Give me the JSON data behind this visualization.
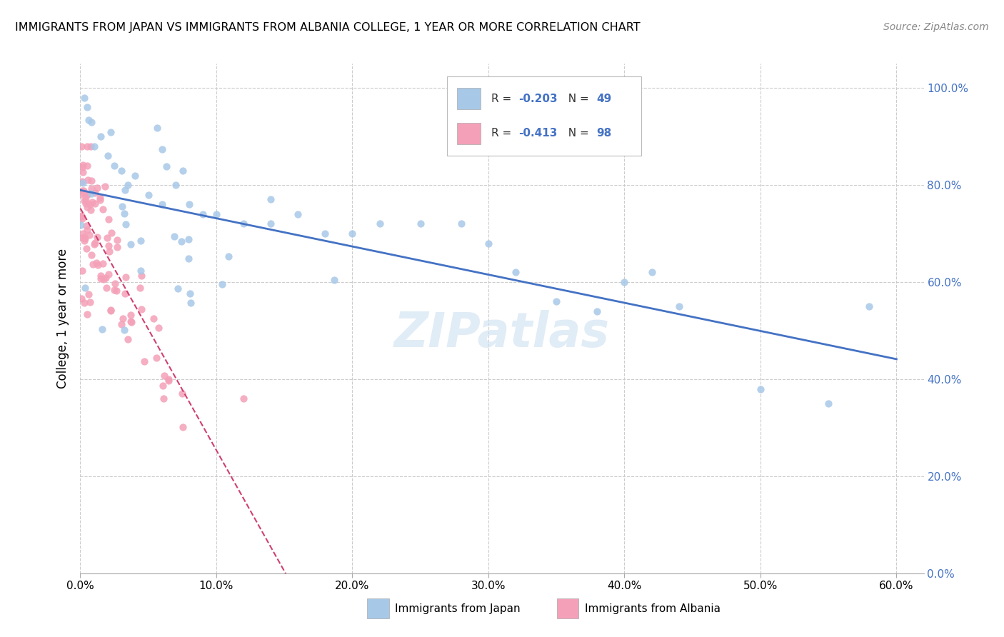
{
  "title": "IMMIGRANTS FROM JAPAN VS IMMIGRANTS FROM ALBANIA COLLEGE, 1 YEAR OR MORE CORRELATION CHART",
  "source": "Source: ZipAtlas.com",
  "ylabel_label": "College, 1 year or more",
  "legend_japan": "Immigrants from Japan",
  "legend_albania": "Immigrants from Albania",
  "R_japan": -0.203,
  "N_japan": 49,
  "R_albania": -0.413,
  "N_albania": 98,
  "color_japan": "#a8c8e8",
  "color_albania": "#f4a0b8",
  "trendline_japan_color": "#4472c4",
  "trendline_albania_color": "#d04070",
  "watermark": "ZIPatlas",
  "xlim": [
    0.0,
    0.62
  ],
  "ylim": [
    0.0,
    1.05
  ],
  "x_ticks": [
    0.0,
    0.1,
    0.2,
    0.3,
    0.4,
    0.5,
    0.6
  ],
  "x_tick_labels": [
    "0.0%",
    "10.0%",
    "20.0%",
    "30.0%",
    "40.0%",
    "50.0%",
    "60.0%"
  ],
  "y_ticks": [
    0.0,
    0.2,
    0.4,
    0.6,
    0.8,
    1.0
  ],
  "y_tick_labels": [
    "0.0%",
    "20.0%",
    "40.0%",
    "60.0%",
    "80.0%",
    "100.0%"
  ]
}
